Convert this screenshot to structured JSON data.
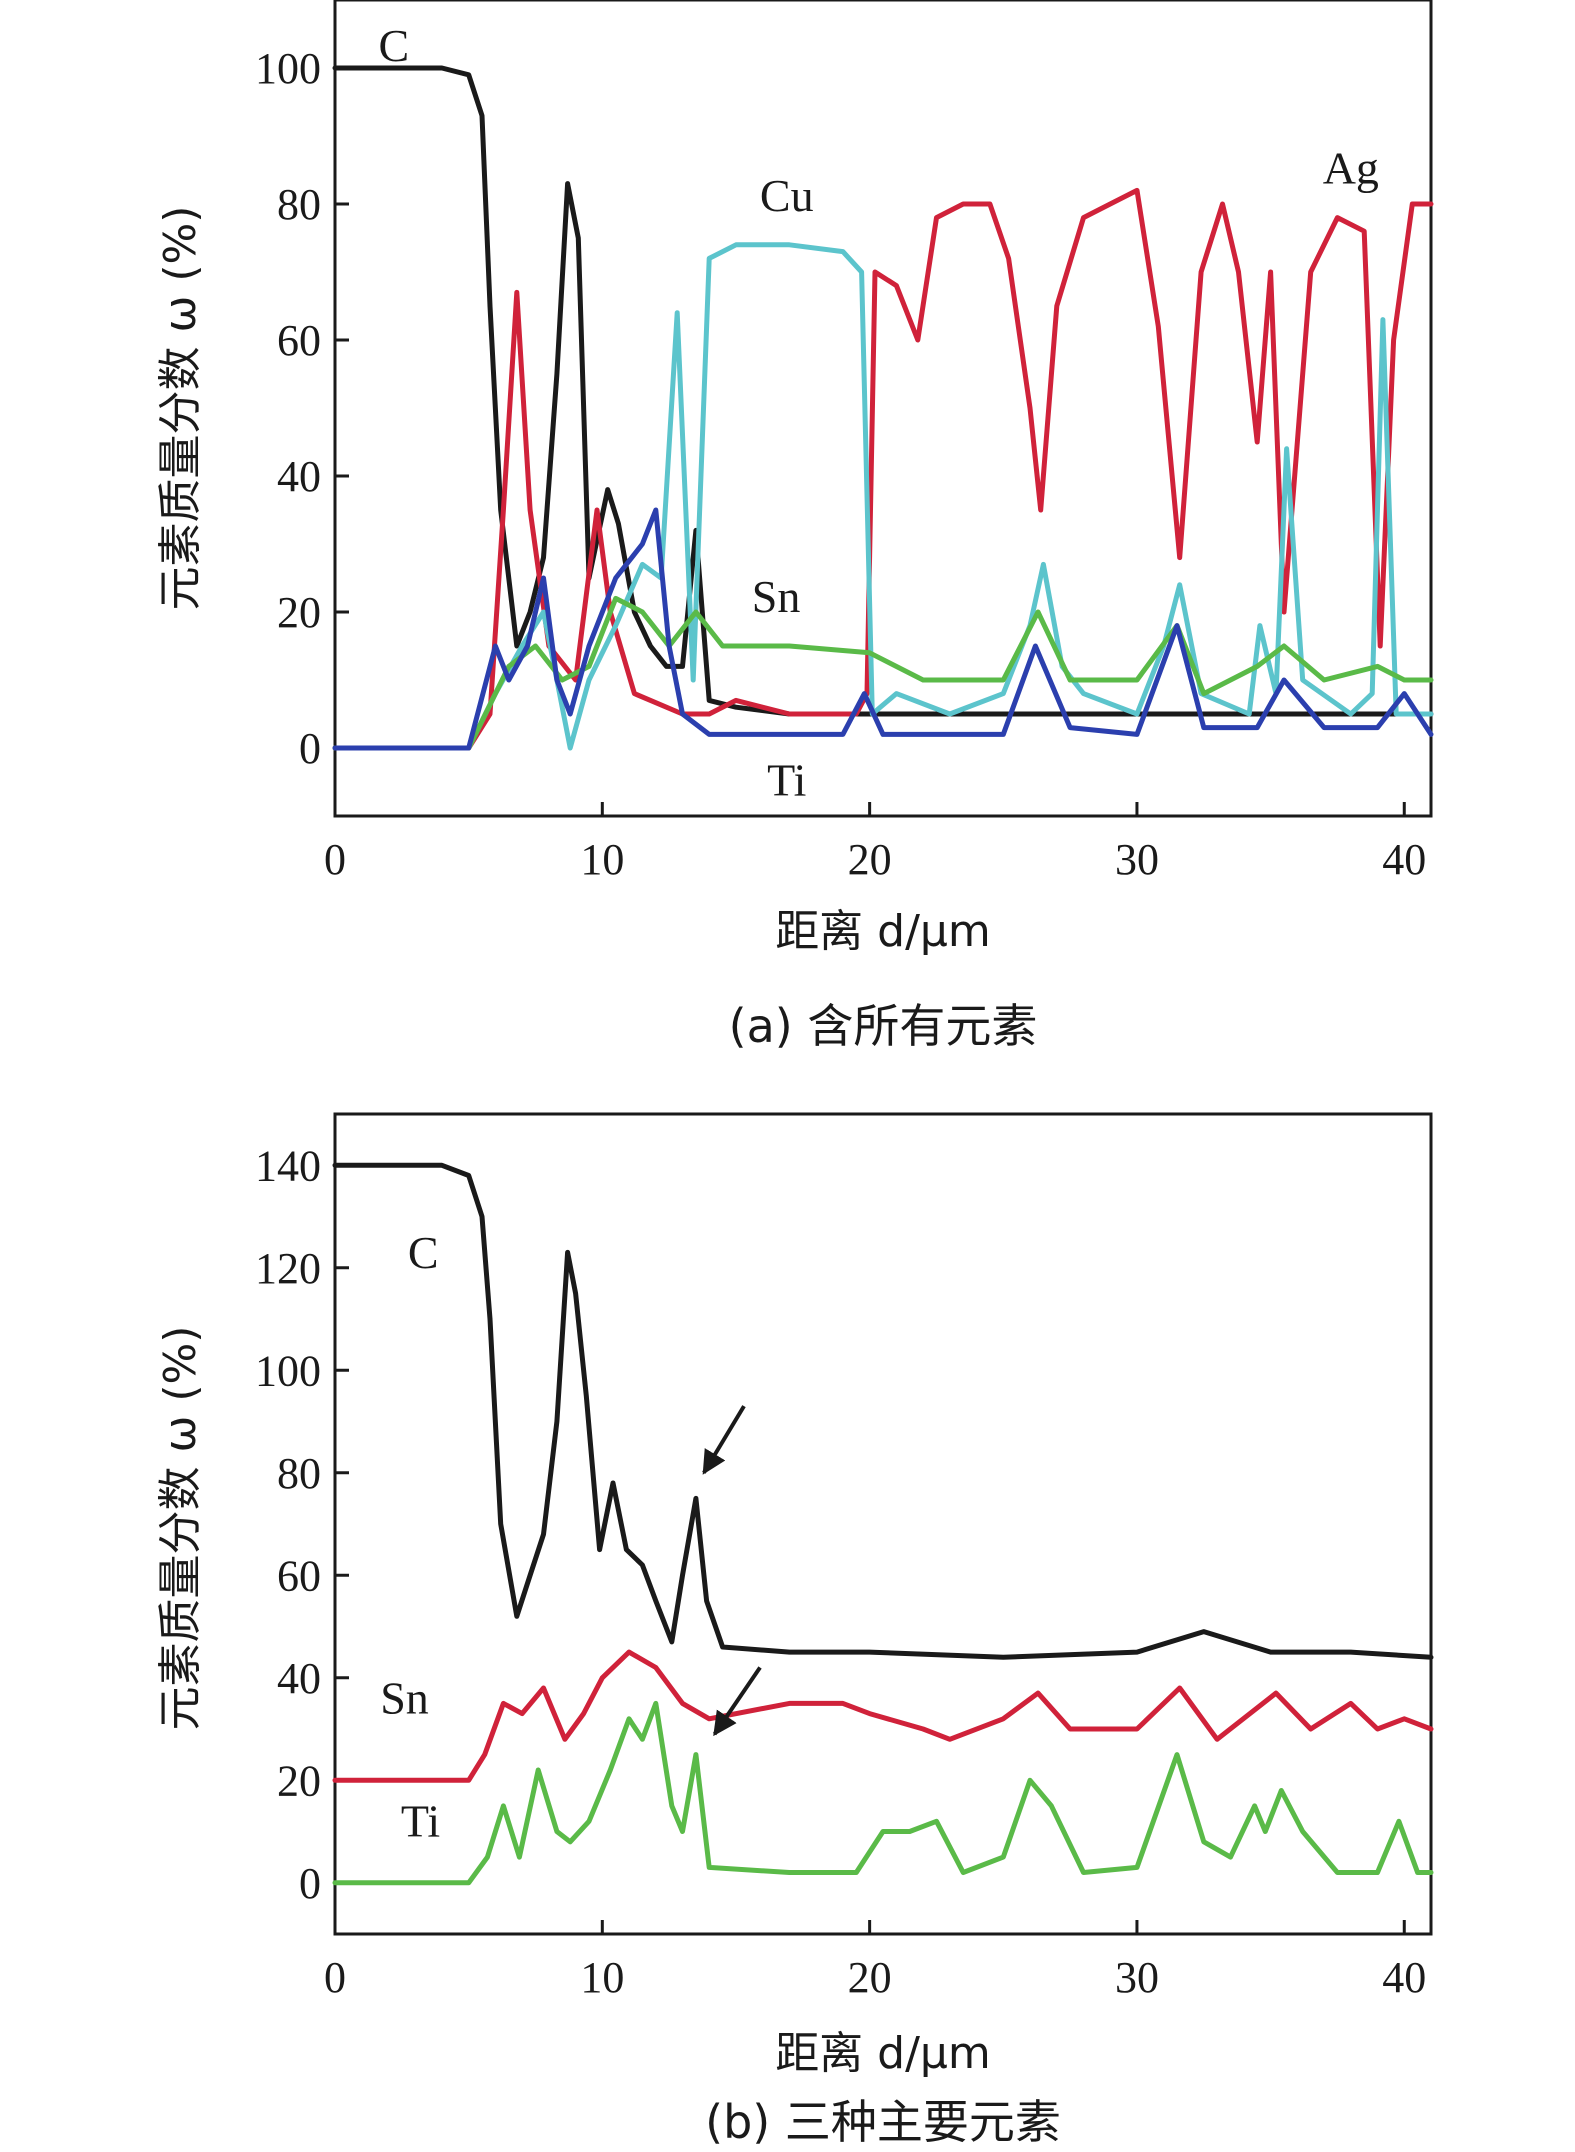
{
  "chart_data": [
    {
      "type": "line",
      "ylabel": "元素质量分数 ω (%)",
      "xlabel": "距离 d/μm",
      "caption": "(a) 含所有元素",
      "xlim": [
        0,
        41
      ],
      "ylim": [
        -10,
        110
      ],
      "xticks": [
        0,
        10,
        20,
        30,
        40
      ],
      "yticks": [
        0,
        20,
        40,
        60,
        80,
        100
      ],
      "grid": false,
      "series": [
        {
          "name": "C",
          "color": "#1a1a1a",
          "x": [
            0,
            2,
            4,
            5,
            5.5,
            5.8,
            6.2,
            6.8,
            7.3,
            7.8,
            8.3,
            8.7,
            9.1,
            9.5,
            10.2,
            10.6,
            11.2,
            11.8,
            12.4,
            13.0,
            13.5,
            14.0,
            15,
            17,
            20,
            25,
            30,
            35,
            38,
            41
          ],
          "values": [
            100,
            100,
            100,
            99,
            93,
            65,
            35,
            15,
            20,
            28,
            55,
            83,
            75,
            25,
            38,
            33,
            20,
            15,
            12,
            12,
            32,
            7,
            6,
            5,
            5,
            5,
            5,
            5,
            5,
            5
          ]
        },
        {
          "name": "Ag",
          "color": "#d0223a",
          "x": [
            0,
            5,
            5.8,
            6.3,
            6.8,
            7.3,
            8.0,
            9.0,
            9.8,
            10.3,
            11.2,
            13.0,
            14.0,
            15,
            17,
            19.5,
            19.9,
            20.2,
            21,
            21.8,
            22.5,
            23.5,
            24.5,
            25.2,
            26.0,
            26.4,
            27.0,
            28,
            29,
            30,
            30.8,
            31.6,
            32.4,
            33.2,
            33.8,
            34.5,
            35.0,
            35.5,
            36.5,
            37.5,
            38.5,
            39.1,
            39.6,
            40.3,
            41
          ],
          "values": [
            0,
            0,
            5,
            35,
            67,
            35,
            15,
            10,
            35,
            20,
            8,
            5,
            5,
            7,
            5,
            5,
            8,
            70,
            68,
            60,
            78,
            80,
            80,
            72,
            50,
            35,
            65,
            78,
            80,
            82,
            62,
            28,
            70,
            80,
            70,
            45,
            70,
            20,
            70,
            78,
            76,
            15,
            60,
            80,
            80
          ]
        },
        {
          "name": "Cu",
          "color": "#5cc4cc",
          "x": [
            0,
            5,
            6.0,
            7.0,
            7.8,
            8.3,
            8.8,
            9.5,
            10.5,
            11.5,
            12.2,
            12.8,
            13.4,
            14.0,
            15,
            17,
            19.0,
            19.7,
            20.1,
            21,
            23,
            25,
            26.0,
            26.5,
            27.2,
            28,
            30,
            31.0,
            31.6,
            32.4,
            34.2,
            34.6,
            35.2,
            35.6,
            36.2,
            38,
            38.8,
            39.2,
            39.7,
            41
          ],
          "values": [
            0,
            0,
            8,
            15,
            20,
            10,
            0,
            10,
            18,
            27,
            25,
            64,
            10,
            72,
            74,
            74,
            73,
            70,
            5,
            8,
            5,
            8,
            18,
            27,
            12,
            8,
            5,
            15,
            24,
            8,
            5,
            18,
            8,
            44,
            10,
            5,
            8,
            63,
            5,
            5
          ]
        },
        {
          "name": "Sn",
          "color": "#5aba48",
          "x": [
            0,
            5,
            6.0,
            6.5,
            7.5,
            8.5,
            9.5,
            10.5,
            11.5,
            12.5,
            13.5,
            14.5,
            17,
            20,
            22,
            25,
            26.3,
            27.5,
            30,
            31.5,
            32.5,
            34.5,
            35.5,
            37,
            39,
            40,
            41
          ],
          "values": [
            0,
            0,
            8,
            12,
            15,
            10,
            12,
            22,
            20,
            15,
            20,
            15,
            15,
            14,
            10,
            10,
            20,
            10,
            10,
            18,
            8,
            12,
            15,
            10,
            12,
            10,
            10
          ]
        },
        {
          "name": "Ti",
          "color": "#2b3fae",
          "x": [
            0,
            5,
            6.0,
            6.5,
            7.2,
            7.8,
            8.3,
            8.8,
            9.5,
            10.5,
            11.5,
            12.0,
            12.5,
            13.0,
            14.0,
            17,
            19,
            19.8,
            20.5,
            23,
            25,
            26.2,
            27.5,
            30,
            31.5,
            32.5,
            34.5,
            35.5,
            37,
            39,
            40,
            41
          ],
          "values": [
            0,
            0,
            15,
            10,
            15,
            25,
            10,
            5,
            15,
            25,
            30,
            35,
            15,
            5,
            2,
            2,
            2,
            8,
            2,
            2,
            2,
            15,
            3,
            2,
            18,
            3,
            3,
            10,
            3,
            3,
            8,
            2
          ]
        }
      ],
      "labels": [
        {
          "text": "C",
          "x": 2.2,
          "y": 101
        },
        {
          "text": "Cu",
          "x": 16.9,
          "y": 79
        },
        {
          "text": "Ag",
          "x": 38.0,
          "y": 83
        },
        {
          "text": "Sn",
          "x": 16.5,
          "y": 20
        },
        {
          "text": "Ti",
          "x": 16.9,
          "y": -7
        }
      ]
    },
    {
      "type": "line",
      "ylabel": "元素质量分数 ω (%)",
      "xlabel": "距离 d/μm",
      "caption": "(b) 三种主要元素",
      "xlim": [
        0,
        41
      ],
      "ylim": [
        -10,
        150
      ],
      "xticks": [
        0,
        10,
        20,
        30,
        40
      ],
      "yticks": [
        0,
        20,
        40,
        60,
        80,
        100,
        120,
        140
      ],
      "grid": false,
      "series": [
        {
          "name": "C",
          "color": "#1a1a1a",
          "x": [
            0,
            2,
            4,
            5,
            5.5,
            5.8,
            6.2,
            6.8,
            7.3,
            7.8,
            8.3,
            8.7,
            9.0,
            9.4,
            9.9,
            10.4,
            10.9,
            11.5,
            12.0,
            12.6,
            13.0,
            13.5,
            13.9,
            14.5,
            17,
            20,
            25,
            30,
            32.5,
            35,
            38,
            41
          ],
          "values": [
            140,
            140,
            140,
            138,
            130,
            110,
            70,
            52,
            60,
            68,
            90,
            123,
            115,
            95,
            65,
            78,
            65,
            62,
            55,
            47,
            60,
            75,
            55,
            46,
            45,
            45,
            44,
            45,
            49,
            45,
            45,
            44
          ]
        },
        {
          "name": "Sn",
          "color": "#d0223a",
          "x": [
            0,
            5,
            5.6,
            6.3,
            7.0,
            7.8,
            8.6,
            9.3,
            10.0,
            11.0,
            12.0,
            13.0,
            14.0,
            17,
            19,
            20,
            22,
            23,
            25,
            26.3,
            27.5,
            30,
            31.6,
            33,
            35.2,
            36.5,
            38,
            39,
            40,
            41
          ],
          "values": [
            20,
            20,
            25,
            35,
            33,
            38,
            28,
            33,
            40,
            45,
            42,
            35,
            32,
            35,
            35,
            33,
            30,
            28,
            32,
            37,
            30,
            30,
            38,
            28,
            37,
            30,
            35,
            30,
            32,
            30
          ]
        },
        {
          "name": "Ti",
          "color": "#5aba48",
          "x": [
            0,
            5,
            5.7,
            6.3,
            6.9,
            7.6,
            8.3,
            8.8,
            9.5,
            10.3,
            11.0,
            11.5,
            12.0,
            12.6,
            13.0,
            13.5,
            14.0,
            17,
            19.5,
            20.5,
            21.5,
            22.5,
            23.5,
            25,
            26.0,
            26.8,
            28,
            30,
            31.5,
            32.5,
            33.5,
            34.4,
            34.8,
            35.4,
            36.2,
            37.5,
            39,
            39.8,
            40.5,
            41
          ],
          "values": [
            0,
            0,
            5,
            15,
            5,
            22,
            10,
            8,
            12,
            22,
            32,
            28,
            35,
            15,
            10,
            25,
            3,
            2,
            2,
            10,
            10,
            12,
            2,
            5,
            20,
            15,
            2,
            3,
            25,
            8,
            5,
            15,
            10,
            18,
            10,
            2,
            2,
            12,
            2,
            2
          ]
        }
      ],
      "labels": [
        {
          "text": "C",
          "x": 3.3,
          "y": 120
        },
        {
          "text": "Sn",
          "x": 2.6,
          "y": 33
        },
        {
          "text": "Ti",
          "x": 3.2,
          "y": 9
        }
      ],
      "arrows": [
        {
          "from": [
            15.3,
            93
          ],
          "to": [
            13.8,
            80
          ]
        },
        {
          "from": [
            15.9,
            42
          ],
          "to": [
            14.2,
            29
          ]
        }
      ]
    }
  ]
}
